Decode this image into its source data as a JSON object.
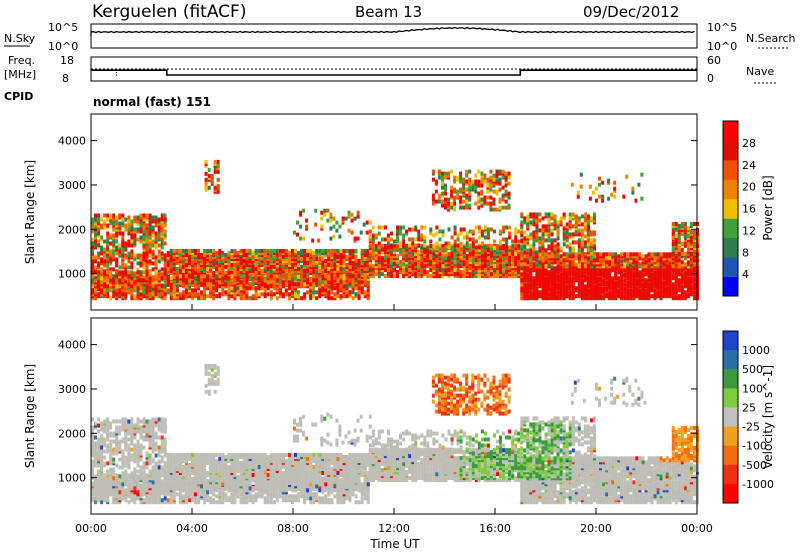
{
  "header": {
    "station": "Kerguelen (fitACF)",
    "beam": "Beam 13",
    "date": "09/Dec/2012"
  },
  "noise_panel": {
    "left_label": "N.Sky",
    "left_ticks": [
      "10^5",
      "10^0"
    ],
    "right_ticks": [
      "10^5",
      "10^0"
    ],
    "right_label": "N.Search"
  },
  "freq_panel": {
    "label_line1": "Freq.",
    "label_line2": "[MHz]",
    "left_ticks": [
      "18",
      "8"
    ],
    "right_ticks": [
      "60",
      "0"
    ],
    "right_label": "Nave"
  },
  "cpid": {
    "label": "CPID",
    "value": "normal (fast) 151"
  },
  "colors": {
    "power_scale": [
      "#0000ff",
      "#1e56b4",
      "#2e7d4f",
      "#3fa23a",
      "#f0c000",
      "#f08000",
      "#f05000",
      "#e01000",
      "#ff0000"
    ],
    "velocity_scale": [
      "#2244cc",
      "#2a70a8",
      "#3a9a40",
      "#7ccc3c",
      "#c0c0bc",
      "#f0a020",
      "#f07010",
      "#f03010",
      "#ff0000"
    ],
    "ground_scatter": "#bebeb6"
  },
  "chart_data": [
    {
      "type": "heatmap",
      "quantity": "Power",
      "xlabel": "",
      "ylabel": "Slant Range [km]",
      "yticks": [
        "1000",
        "2000",
        "3000",
        "4000"
      ],
      "ylim": [
        180,
        4600
      ],
      "xlim": [
        "00:00",
        "24:00"
      ],
      "colorbar": {
        "label": "Power [dB]",
        "ticks": [
          "4",
          "8",
          "12",
          "16",
          "20",
          "24",
          "28"
        ],
        "range": [
          0,
          32
        ]
      }
    },
    {
      "type": "heatmap",
      "quantity": "Velocity",
      "xlabel": "Time UT",
      "xticks": [
        "00:00",
        "04:00",
        "08:00",
        "12:00",
        "16:00",
        "20:00",
        "00:00"
      ],
      "ylabel": "Slant Range [km]",
      "yticks": [
        "1000",
        "2000",
        "3000",
        "4000"
      ],
      "ylim": [
        180,
        4600
      ],
      "colorbar": {
        "label": "Velocity [m s^-1]",
        "ticks": [
          "1000",
          "500",
          "100",
          "25",
          "-25",
          "-100",
          "-500",
          "-1000"
        ]
      }
    },
    {
      "type": "line",
      "quantity": "Frequency (MHz)",
      "series_values_description_note": "",
      "x": [
        "00:00",
        "03:00",
        "03:00",
        "17:00",
        "17:00",
        "24:00"
      ],
      "y": [
        12.5,
        12.5,
        10.5,
        10.5,
        12.5,
        12.5
      ],
      "ylim": [
        8,
        18
      ]
    }
  ]
}
